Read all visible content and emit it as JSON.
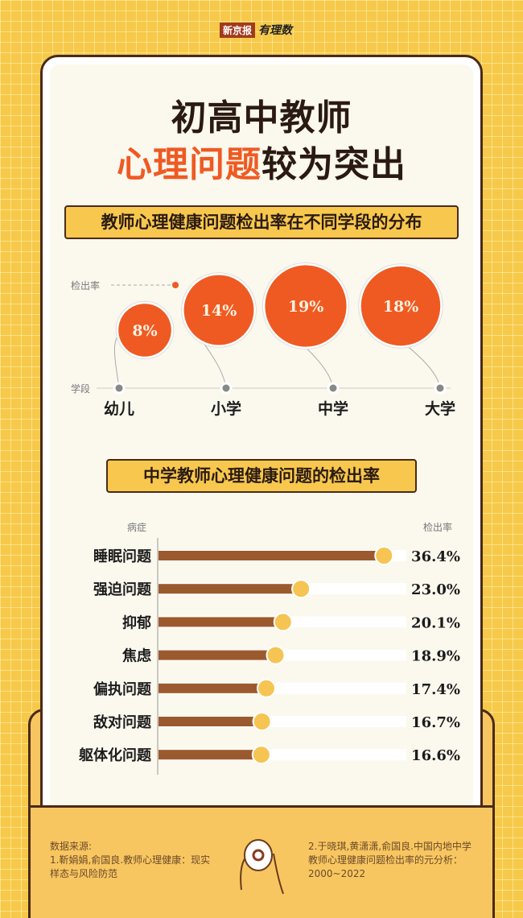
{
  "logo": {
    "brand": "新京报",
    "column": "有理数"
  },
  "title": {
    "line1": "初高中教师",
    "line2_highlight": "心理问题",
    "line2_rest": "较为突出"
  },
  "colors": {
    "orange": "#ef5a22",
    "brown": "#9b5a2e",
    "yellow_dot": "#f6c453",
    "background": "#f6c94a"
  },
  "chart_data": [
    {
      "type": "bubble",
      "title": "教师心理健康问题检出率在不同学段的分布",
      "ylabel": "检出率",
      "xlabel": "学段",
      "categories": [
        "幼儿",
        "小学",
        "中学",
        "大学"
      ],
      "values": [
        8,
        14,
        19,
        18
      ],
      "labels": [
        "8%",
        "14%",
        "19%",
        "18%"
      ]
    },
    {
      "type": "bar",
      "orientation": "horizontal",
      "title": "中学教师心理健康问题的检出率",
      "xlabel": "病症",
      "ylabel": "检出率",
      "categories": [
        "睡眠问题",
        "强迫问题",
        "抑郁",
        "焦虑",
        "偏执问题",
        "敌对问题",
        "躯体化问题"
      ],
      "values": [
        36.4,
        23.0,
        20.1,
        18.9,
        17.4,
        16.7,
        16.6
      ],
      "labels": [
        "36.4%",
        "23.0%",
        "20.1%",
        "18.9%",
        "17.4%",
        "16.7%",
        "16.6%"
      ],
      "xlim": [
        0,
        40
      ]
    }
  ],
  "footer": {
    "heading": "数据来源:",
    "source1": "1.靳娟娟,俞国良.教师心理健康：现实样态与风险防范",
    "source2": "2.于晓琪,黄潇潇,俞国良.中国内地中学教师心理健康问题检出率的元分析：2000~2022"
  }
}
